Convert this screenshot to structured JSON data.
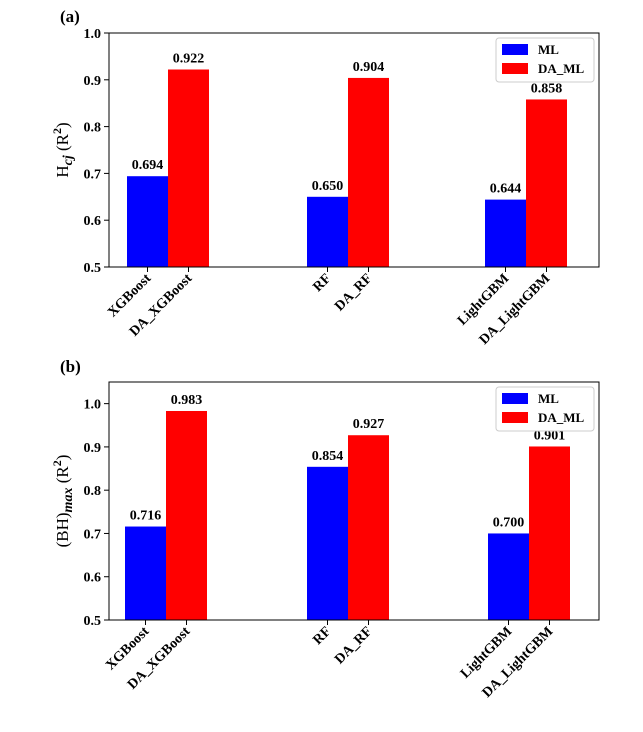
{
  "chart_data": [
    {
      "type": "bar",
      "panel_label": "(a)",
      "ylabel_main": "H",
      "ylabel_sub": "cj",
      "ylabel_unit": " (R",
      "ylabel_sup": "2",
      "ylabel_close": ")",
      "ylim": [
        0.5,
        1.0
      ],
      "yticks": [
        "0.5",
        "0.6",
        "0.7",
        "0.8",
        "0.9",
        "1.0"
      ],
      "ytick_values": [
        0.5,
        0.6,
        0.7,
        0.8,
        0.9,
        1.0
      ],
      "categories": [
        "XGBoost",
        "RF",
        "LightGBM"
      ],
      "xtick_labels": [
        "XGBoost",
        "DA_XGBoost",
        "RF",
        "DA_RF",
        "LightGBM",
        "DA_LightGBM"
      ],
      "legend_position": "top-right",
      "series": [
        {
          "name": "ML",
          "color": "#0000ff",
          "values": [
            0.694,
            0.65,
            0.644
          ],
          "labels": [
            "0.694",
            "0.650",
            "0.644"
          ]
        },
        {
          "name": "DA_ML",
          "color": "#ff0000",
          "values": [
            0.922,
            0.904,
            0.858
          ],
          "labels": [
            "0.922",
            "0.904",
            "0.858"
          ]
        }
      ]
    },
    {
      "type": "bar",
      "panel_label": "(b)",
      "ylabel_main": "(BH)",
      "ylabel_sub": "max",
      "ylabel_unit": " (R",
      "ylabel_sup": "2",
      "ylabel_close": ")",
      "ylim": [
        0.5,
        1.05
      ],
      "yticks": [
        "0.5",
        "0.6",
        "0.7",
        "0.8",
        "0.9",
        "1.0"
      ],
      "ytick_values": [
        0.5,
        0.6,
        0.7,
        0.8,
        0.9,
        1.0
      ],
      "categories": [
        "XGBoost",
        "RF",
        "LightGBM"
      ],
      "xtick_labels": [
        "XGBoost",
        "DA_XGBoost",
        "RF",
        "DA_RF",
        "LightGBM",
        "DA_LightGBM"
      ],
      "legend_position": "top-right",
      "series": [
        {
          "name": "ML",
          "color": "#0000ff",
          "values": [
            0.716,
            0.854,
            0.7
          ],
          "labels": [
            "0.716",
            "0.854",
            "0.700"
          ]
        },
        {
          "name": "DA_ML",
          "color": "#ff0000",
          "values": [
            0.983,
            0.927,
            0.901
          ],
          "labels": [
            "0.983",
            "0.927",
            "0.901"
          ]
        }
      ]
    }
  ]
}
